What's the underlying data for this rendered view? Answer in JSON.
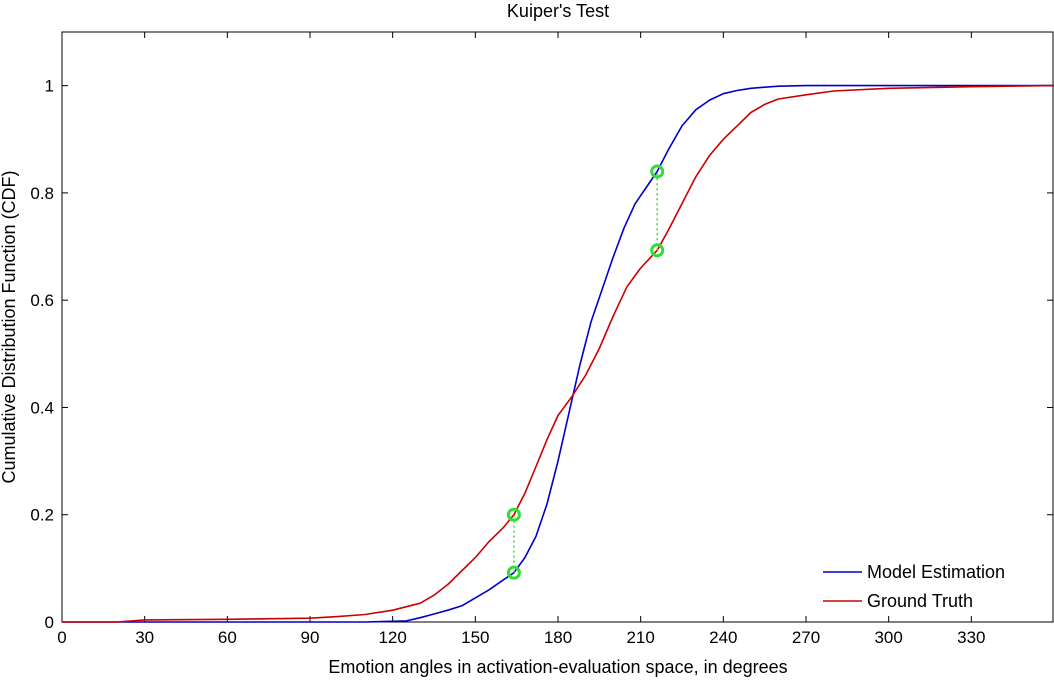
{
  "chart_data": {
    "type": "line",
    "title": "Kuiper's Test",
    "xlabel": "Emotion angles in activation-evaluation space, in degrees",
    "ylabel": "Cumulative Distribution Function (CDF)",
    "xlim": [
      0,
      360
    ],
    "ylim": [
      0,
      1.1
    ],
    "xticks": [
      0,
      30,
      60,
      90,
      120,
      150,
      180,
      210,
      240,
      270,
      300,
      330
    ],
    "yticks": [
      0,
      0.2,
      0.4,
      0.6,
      0.8,
      1
    ],
    "grid": false,
    "legend_position": "bottom-right",
    "series": [
      {
        "name": "Model Estimation",
        "color": "#0000cc",
        "x": [
          0,
          110,
          125,
          130,
          135,
          140,
          145,
          150,
          155,
          160,
          164,
          168,
          172,
          176,
          180,
          184,
          188,
          192,
          196,
          200,
          204,
          208,
          212,
          216,
          220,
          225,
          230,
          235,
          240,
          245,
          250,
          255,
          260,
          270,
          300,
          330,
          360
        ],
        "y": [
          0,
          0,
          0.002,
          0.008,
          0.015,
          0.022,
          0.03,
          0.045,
          0.06,
          0.078,
          0.092,
          0.12,
          0.16,
          0.22,
          0.3,
          0.39,
          0.48,
          0.56,
          0.62,
          0.68,
          0.735,
          0.78,
          0.81,
          0.84,
          0.88,
          0.925,
          0.955,
          0.973,
          0.985,
          0.991,
          0.995,
          0.997,
          0.999,
          1.0,
          1.0,
          1.0,
          1.0
        ]
      },
      {
        "name": "Ground Truth",
        "color": "#cc0000",
        "x": [
          0,
          20,
          30,
          60,
          90,
          100,
          110,
          120,
          130,
          135,
          140,
          145,
          150,
          155,
          160,
          164,
          168,
          172,
          176,
          180,
          185,
          190,
          195,
          200,
          205,
          210,
          216,
          220,
          225,
          230,
          235,
          240,
          245,
          250,
          255,
          260,
          270,
          280,
          300,
          330,
          360
        ],
        "y": [
          0,
          0,
          0.004,
          0.005,
          0.007,
          0.01,
          0.014,
          0.022,
          0.035,
          0.05,
          0.07,
          0.095,
          0.12,
          0.15,
          0.175,
          0.2,
          0.24,
          0.29,
          0.34,
          0.385,
          0.42,
          0.46,
          0.51,
          0.57,
          0.625,
          0.66,
          0.693,
          0.73,
          0.78,
          0.83,
          0.87,
          0.9,
          0.925,
          0.95,
          0.965,
          0.975,
          0.983,
          0.99,
          0.995,
          0.998,
          1.0
        ]
      }
    ],
    "annotations": [
      {
        "x": 164,
        "y_low": 0.092,
        "y_high": 0.2,
        "color": "#33dd33"
      },
      {
        "x": 216,
        "y_low": 0.693,
        "y_high": 0.84,
        "color": "#33dd33"
      }
    ]
  }
}
